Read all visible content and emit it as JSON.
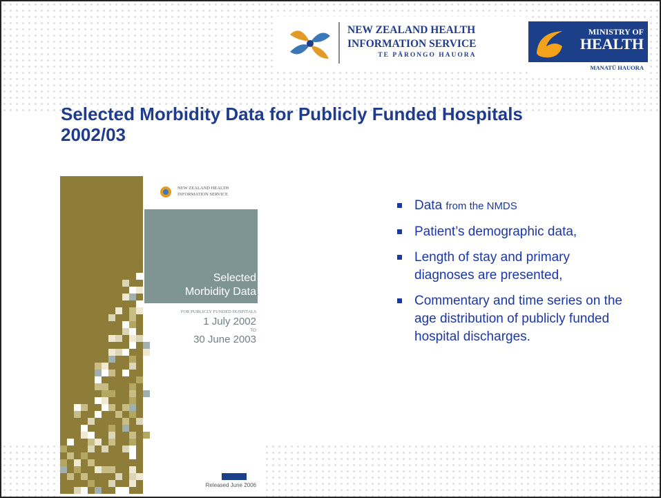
{
  "header": {
    "nzhis": {
      "line1": "NEW ZEALAND HEALTH",
      "line2": "INFORMATION SERVICE",
      "line3": "TE PĀRONGO HAUORA"
    },
    "moh": {
      "line1": "MINISTRY OF",
      "line2": "HEALTH",
      "line3": "MANATŪ HAUORA"
    }
  },
  "title": "Selected Morbidity Data for Publicly Funded Hospitals 2002/03",
  "cover": {
    "logo_line1": "NEW ZEALAND HEALTH",
    "logo_line2": "INFORMATION SERVICE",
    "title_line1": "Selected",
    "title_line2": "Morbidity Data",
    "subtitle": "FOR PUBLICLY FUNDED HOSPITALS",
    "date_from": "1 July 2002",
    "to": "TO",
    "date_to": "30 June 2003",
    "released": "Released June 2006"
  },
  "bullets": [
    [
      "Data",
      "from the NMDS"
    ],
    [
      "Patient’s demographic data,"
    ],
    [
      "Length of stay and primary diagnoses are presented,"
    ],
    [
      "Commentary and time series on the age distribution of publicly funded hospital discharges."
    ]
  ]
}
